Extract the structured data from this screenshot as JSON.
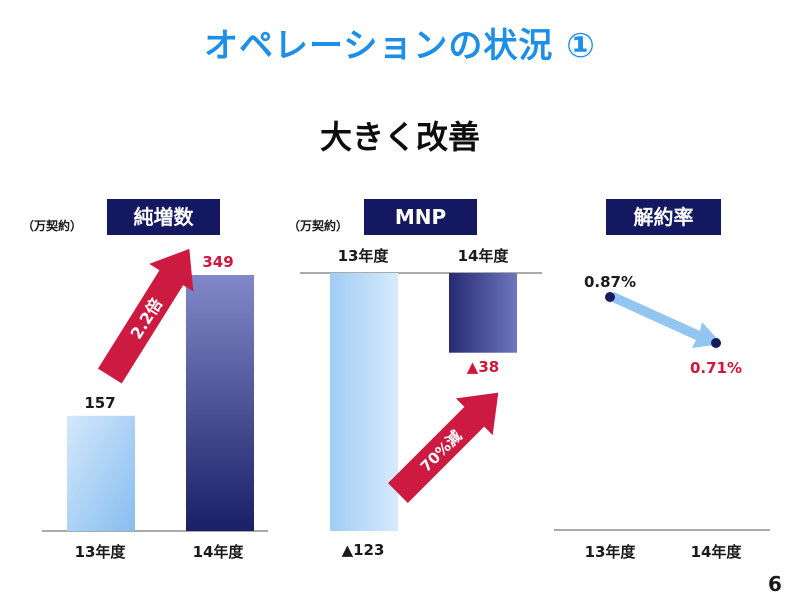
{
  "page": {
    "title": "オペレーションの状況 ①",
    "subtitle": "大きく改善",
    "page_number": "6"
  },
  "colors": {
    "title": "#1e8fe6",
    "header_bg": "#141861",
    "bar_light_top": "#c8e1fa",
    "bar_light_bottom": "#8fc3f2",
    "bar_dark_top": "#7e86c6",
    "bar_dark_bottom": "#1c2068",
    "arrow_red": "#cc1a40",
    "arrow_blue": "#92c6f0",
    "dot": "#151a5c"
  },
  "panels": {
    "net_adds": {
      "unit": "（万契約）",
      "header": "純増数",
      "arrow_label": "2.2倍",
      "value_labels": [
        "157",
        "349"
      ],
      "categories": [
        "13年度",
        "14年度"
      ]
    },
    "mnp": {
      "unit": "（万契約）",
      "header": "MNP",
      "arrow_label": "70%減",
      "value_labels": [
        "▲123",
        "▲38"
      ],
      "categories": [
        "13年度",
        "14年度"
      ]
    },
    "churn": {
      "header": "解約率",
      "value_labels": [
        "0.87%",
        "0.71%"
      ],
      "categories": [
        "13年度",
        "14年度"
      ]
    }
  },
  "chart_data": [
    {
      "type": "bar",
      "title": "純増数",
      "ylabel": "（万契約）",
      "categories": [
        "13年度",
        "14年度"
      ],
      "values": [
        157,
        349
      ]
    },
    {
      "type": "bar",
      "title": "MNP",
      "ylabel": "（万契約）",
      "categories": [
        "13年度",
        "14年度"
      ],
      "values": [
        -123,
        -38
      ]
    },
    {
      "type": "line",
      "title": "解約率",
      "categories": [
        "13年度",
        "14年度"
      ],
      "values": [
        0.87,
        0.71
      ]
    }
  ]
}
